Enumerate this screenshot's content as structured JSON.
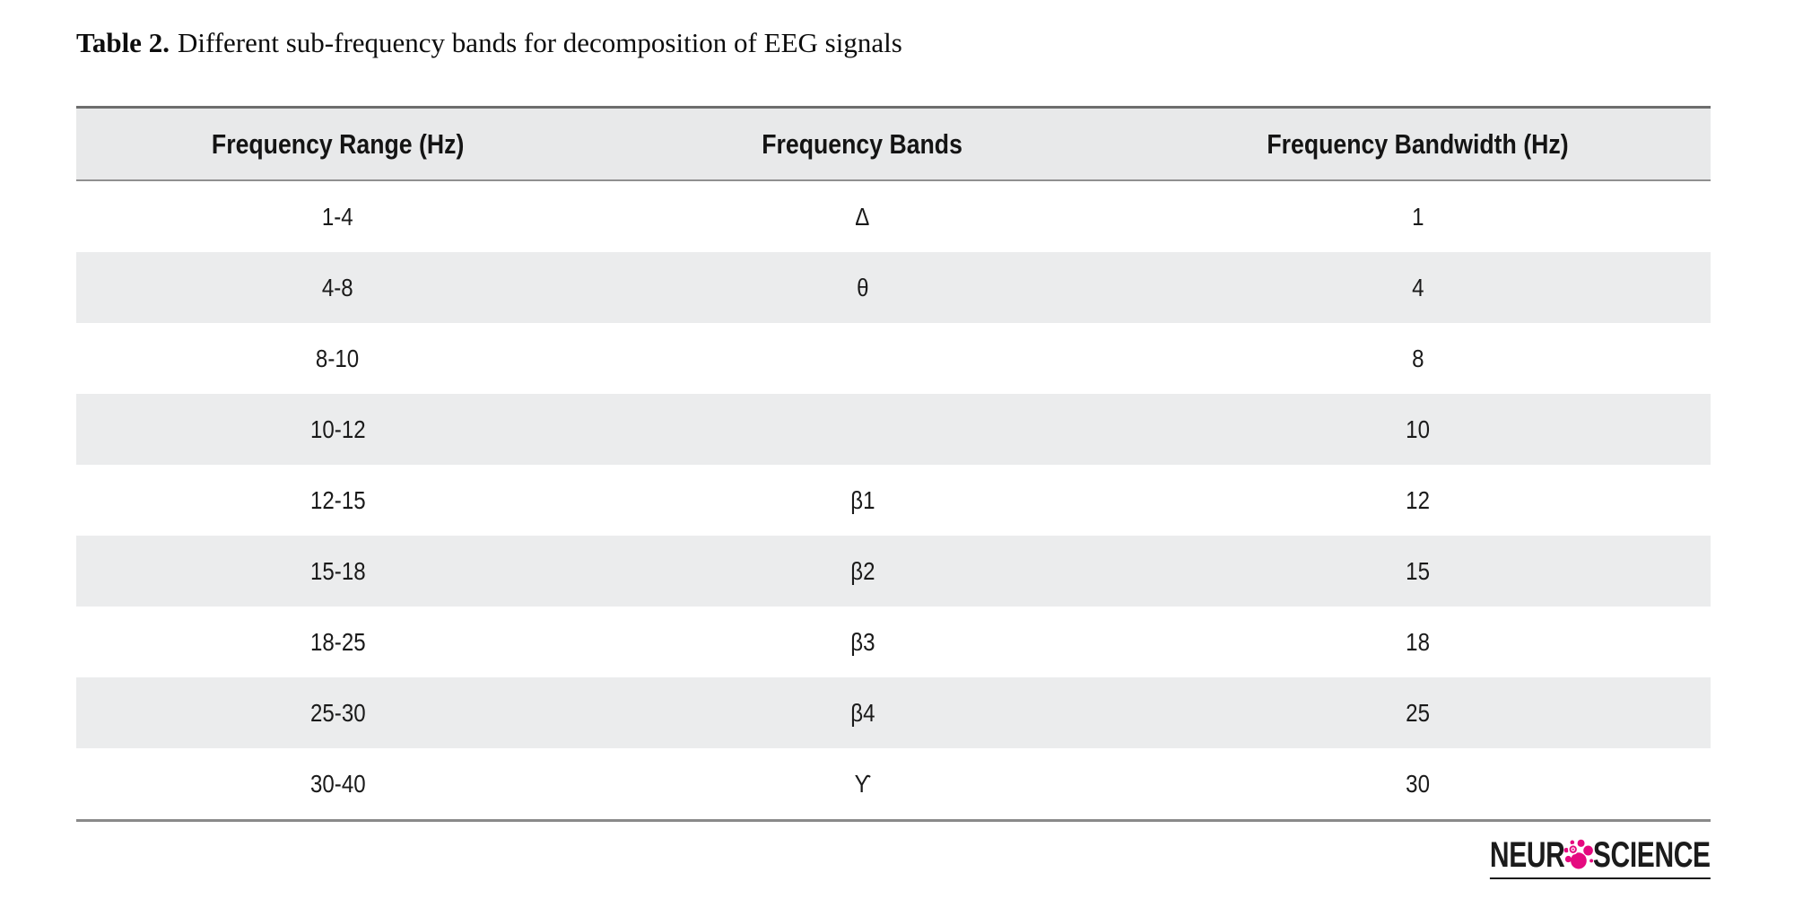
{
  "caption": {
    "label": "Table 2.",
    "text": "Different sub-frequency bands for decomposition of EEG signals"
  },
  "table": {
    "headers": [
      "Frequency Range (Hz)",
      "Frequency Bands",
      "Frequency Bandwidth (Hz)"
    ],
    "rows": [
      {
        "range": "1-4",
        "band": "Δ",
        "bandwidth": "1"
      },
      {
        "range": "4-8",
        "band": "θ",
        "bandwidth": "4"
      },
      {
        "range": "8-10",
        "band": "",
        "bandwidth": "8"
      },
      {
        "range": "10-12",
        "band": "",
        "bandwidth": "10"
      },
      {
        "range": "12-15",
        "band": "β1",
        "bandwidth": "12"
      },
      {
        "range": "15-18",
        "band": "β2",
        "bandwidth": "15"
      },
      {
        "range": "18-25",
        "band": "β3",
        "bandwidth": "18"
      },
      {
        "range": "25-30",
        "band": "β4",
        "bandwidth": "25"
      },
      {
        "range": "30-40",
        "band": "ϒ",
        "bandwidth": "30"
      }
    ]
  },
  "logo": {
    "prefix": "NEUR",
    "suffix": "SCIENCE",
    "icon": "neuron-cell-icon",
    "accent_color": "#E5097F",
    "text_color": "#1B1B1B"
  },
  "chart_data": {
    "type": "table",
    "title": "Table 2. Different sub-frequency bands for decomposition of EEG signals",
    "columns": [
      "Frequency Range (Hz)",
      "Frequency Bands",
      "Frequency Bandwidth (Hz)"
    ],
    "rows": [
      [
        "1-4",
        "Δ",
        1
      ],
      [
        "4-8",
        "θ",
        4
      ],
      [
        "8-10",
        "",
        8
      ],
      [
        "10-12",
        "",
        10
      ],
      [
        "12-15",
        "β1",
        12
      ],
      [
        "15-18",
        "β2",
        15
      ],
      [
        "18-25",
        "β3",
        18
      ],
      [
        "25-30",
        "β4",
        25
      ],
      [
        "30-40",
        "ϒ",
        30
      ]
    ]
  }
}
